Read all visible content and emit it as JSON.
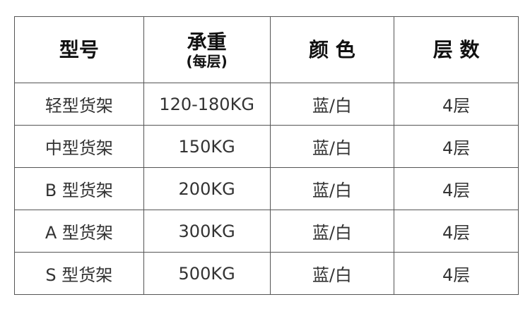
{
  "headers": [
    {
      "main": "型号",
      "sub": ""
    },
    {
      "main": "承重",
      "sub": "(每层)"
    },
    {
      "main": "颜 色",
      "sub": ""
    },
    {
      "main": "层 数",
      "sub": ""
    }
  ],
  "rows": [
    [
      "轻型货架",
      "120-180KG",
      "蓝/白",
      "4层"
    ],
    [
      "中型货架",
      "150KG",
      "蓝/白",
      "4层"
    ],
    [
      "B 型货架",
      "200KG",
      "蓝/白",
      "4层"
    ],
    [
      "A 型货架",
      "300KG",
      "蓝/白",
      "4层"
    ],
    [
      "S 型货架",
      "500KG",
      "蓝/白",
      "4层"
    ]
  ]
}
